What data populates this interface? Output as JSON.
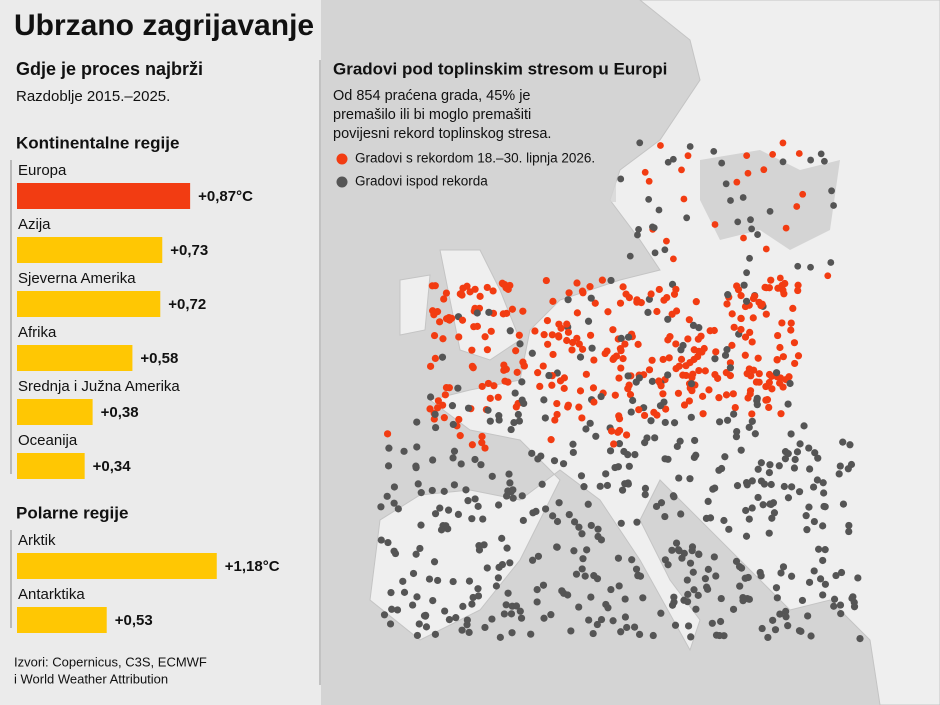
{
  "title": "Ubrzano zagrijavanje",
  "subtitle": "Gdje je proces najbrži",
  "period": "Razdoblje 2015.–2025.",
  "chart_data": [
    {
      "type": "hbar",
      "title": "Kontinentalne regije",
      "categories": [
        "Europa",
        "Azija",
        "Sjeverna Amerika",
        "Afrika",
        "Srednja i Južna Amerika",
        "Oceanija"
      ],
      "values": [
        0.87,
        0.73,
        0.72,
        0.58,
        0.38,
        0.34
      ],
      "value_labels": [
        "+0,87°C",
        "+0,73",
        "+0,72",
        "+0,58",
        "+0,38",
        "+0,34"
      ],
      "colors": [
        "#f23c12",
        "#ffc703",
        "#ffc703",
        "#ffc703",
        "#ffc703",
        "#ffc703"
      ],
      "xlim": [
        0,
        1
      ]
    },
    {
      "type": "hbar",
      "title": "Polarne regije",
      "categories": [
        "Arktik",
        "Antarktika"
      ],
      "values": [
        1.18,
        0.53
      ],
      "value_labels": [
        "+1,18°C",
        "+0,53"
      ],
      "colors": [
        "#ffc703",
        "#ffc703"
      ],
      "xlim": [
        0,
        1.4
      ]
    }
  ],
  "map": {
    "title": "Gradovi pod toplinskim stresom u Europi",
    "description": [
      "Od 854 praćena grada, 45% je",
      "premašilo ili bi moglo premašiti",
      "povijesni rekord toplinskog stresa."
    ],
    "legend": [
      {
        "name": "Gradovi s rekordom 18.–30. lipnja 2026.",
        "color": "#f23c12"
      },
      {
        "name": "Gradovi ispod rekorda",
        "color": "#555555"
      }
    ]
  },
  "source": [
    "Izvori: Copernicus, C3S, ECMWF",
    "i World Weather Attribution"
  ]
}
